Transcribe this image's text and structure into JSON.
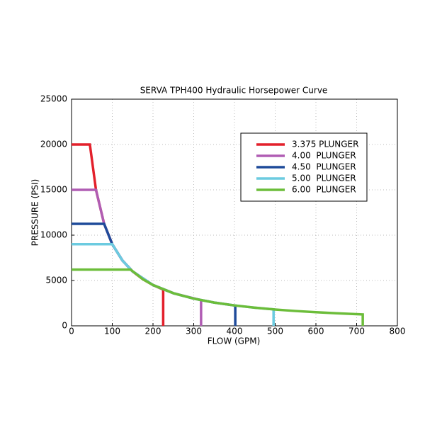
{
  "chart_data": {
    "type": "line",
    "title": "SERVA TPH400 Hydraulic Horsepower Curve",
    "x_label": "FLOW (GPM)",
    "y_label": "PRESSURE (PSI)",
    "xlim": [
      0,
      800
    ],
    "xticks": [
      0,
      100,
      200,
      300,
      400,
      500,
      600,
      700,
      800
    ],
    "ylim": [
      0,
      25000
    ],
    "yticks": [
      0,
      5000,
      10000,
      15000,
      20000,
      25000
    ],
    "grid": true,
    "legend": "upper right",
    "series": [
      {
        "name": "3.375 PLUNGER",
        "color": "#e3202b",
        "x": [
          0,
          45,
          60,
          80,
          100,
          125,
          150,
          175,
          200,
          225,
          225
        ],
        "values": [
          20000,
          20000,
          15000,
          11250,
          9000,
          7200,
          6000,
          5143,
          4500,
          4000,
          0
        ]
      },
      {
        "name": "4.00  PLUNGER",
        "color": "#b05db4",
        "x": [
          0,
          60,
          80,
          100,
          125,
          150,
          200,
          250,
          318,
          318
        ],
        "values": [
          15000,
          15000,
          11250,
          9000,
          7200,
          6000,
          4500,
          3600,
          2830,
          0
        ]
      },
      {
        "name": "4.50  PLUNGER",
        "color": "#1f4b9a",
        "x": [
          0,
          80,
          100,
          125,
          150,
          200,
          250,
          300,
          350,
          402,
          402
        ],
        "values": [
          11250,
          11250,
          9000,
          7200,
          6000,
          4500,
          3600,
          3000,
          2571,
          2239,
          0
        ]
      },
      {
        "name": "5.00  PLUNGER",
        "color": "#6ccbe0",
        "x": [
          0,
          100,
          125,
          150,
          200,
          250,
          300,
          350,
          400,
          450,
          496,
          496
        ],
        "values": [
          9000,
          9000,
          7200,
          6000,
          4500,
          3600,
          3000,
          2571,
          2250,
          2000,
          1815,
          0
        ]
      },
      {
        "name": "6.00  PLUNGER",
        "color": "#6cbd3a",
        "x": [
          0,
          145,
          175,
          200,
          250,
          300,
          350,
          400,
          450,
          500,
          550,
          600,
          650,
          715,
          715
        ],
        "values": [
          6200,
          6200,
          5143,
          4500,
          3600,
          3000,
          2571,
          2250,
          2000,
          1800,
          1636,
          1500,
          1385,
          1259,
          0
        ]
      }
    ]
  }
}
